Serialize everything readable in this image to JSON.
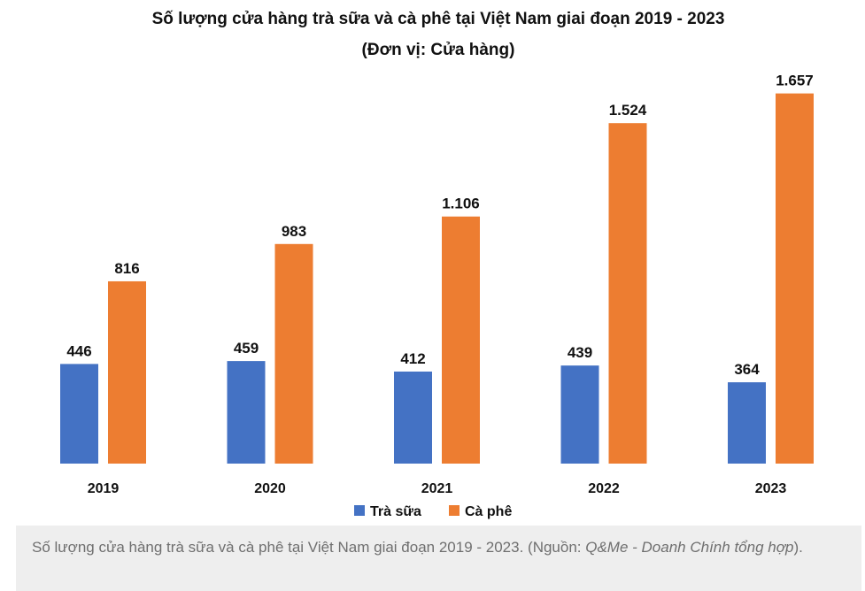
{
  "chart_data": {
    "type": "bar",
    "title": "Số lượng cửa hàng trà sữa và cà phê tại Việt Nam giai đoạn 2019 - 2023",
    "subtitle": "(Đơn vị: Cửa hàng)",
    "categories": [
      "2019",
      "2020",
      "2021",
      "2022",
      "2023"
    ],
    "series": [
      {
        "name": "Trà sữa",
        "color": "#4472C4",
        "values": [
          446,
          459,
          412,
          439,
          364
        ],
        "labels": [
          "446",
          "459",
          "412",
          "439",
          "364"
        ]
      },
      {
        "name": "Cà phê",
        "color": "#ED7D31",
        "values": [
          816,
          983,
          1106,
          1524,
          1657
        ],
        "labels": [
          "816",
          "983",
          "1.106",
          "1.524",
          "1.657"
        ]
      }
    ],
    "ylim": [
      0,
      1800
    ],
    "grid": false,
    "legend_position": "bottom"
  },
  "caption": {
    "text": "Số lượng cửa hàng trà sữa và cà phê tại Việt Nam giai đoạn 2019 - 2023. (Nguồn: ",
    "source_italic": "Q&Me - Doanh Chính tổng hợp",
    "close": ")."
  }
}
